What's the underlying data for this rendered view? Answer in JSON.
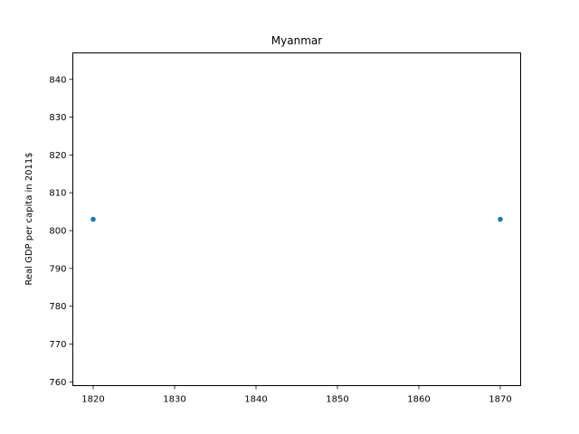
{
  "chart_data": {
    "type": "scatter",
    "title": "Myanmar",
    "xlabel": "",
    "ylabel": "Real GDP per capita in 2011$",
    "x": [
      1820,
      1870
    ],
    "y": [
      803,
      803
    ],
    "xlim": [
      1817.5,
      1872.5
    ],
    "ylim": [
      759,
      847
    ],
    "xticks": [
      1820,
      1830,
      1840,
      1850,
      1860,
      1870
    ],
    "yticks": [
      760,
      770,
      780,
      790,
      800,
      810,
      820,
      830,
      840
    ],
    "point_color": "#1f77b4",
    "grid": false,
    "legend": "none"
  }
}
